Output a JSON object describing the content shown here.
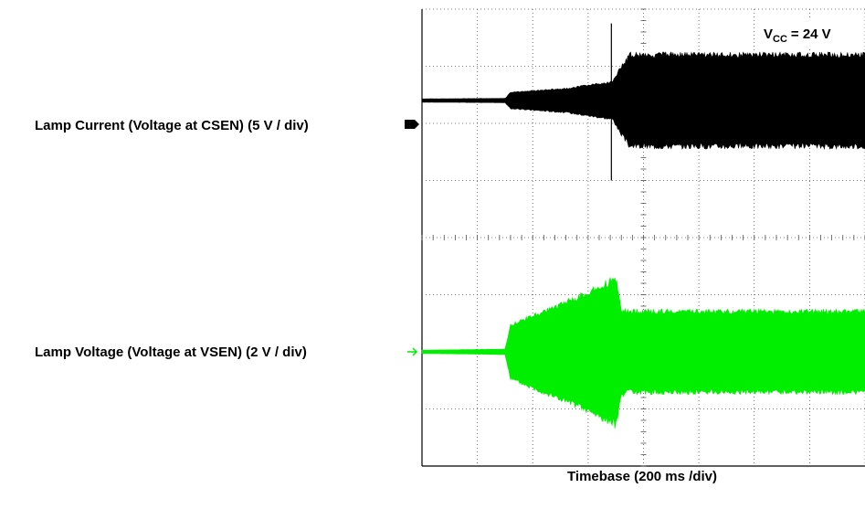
{
  "chart_data": {
    "type": "line",
    "title": "",
    "annotation_text": "V",
    "annotation_sub": "CC",
    "annotation_value": "= 24 V",
    "ylabel_ch1": "Lamp Current (Voltage at CSEN) (5 V / div)",
    "ylabel_ch2": "Lamp Voltage (Voltage at VSEN) (2 V / div)",
    "xlabel": "Timebase (200 ms /div)",
    "grid": true,
    "divisions": {
      "x": 8,
      "y": 8
    },
    "series": [
      {
        "color": "#000000",
        "envelope_div": [
          {
            "t": 0.0,
            "amp": 0.03
          },
          {
            "t": 1.5,
            "amp": 0.04
          },
          {
            "t": 1.6,
            "amp": 0.15
          },
          {
            "t": 2.6,
            "amp": 0.22
          },
          {
            "t": 3.45,
            "amp": 0.35
          },
          {
            "t": 3.55,
            "amp": 0.55
          },
          {
            "t": 3.75,
            "amp": 0.85
          },
          {
            "t": 8.0,
            "amp": 0.85
          }
        ]
      },
      {
        "color": "#00ee00",
        "envelope_div": [
          {
            "t": 0.0,
            "amp": 0.03
          },
          {
            "t": 1.5,
            "amp": 0.05
          },
          {
            "t": 1.6,
            "amp": 0.5
          },
          {
            "t": 2.8,
            "amp": 1.0
          },
          {
            "t": 3.5,
            "amp": 1.35
          },
          {
            "t": 3.6,
            "amp": 0.8
          },
          {
            "t": 3.7,
            "amp": 0.75
          },
          {
            "t": 8.0,
            "amp": 0.75
          }
        ]
      }
    ]
  }
}
